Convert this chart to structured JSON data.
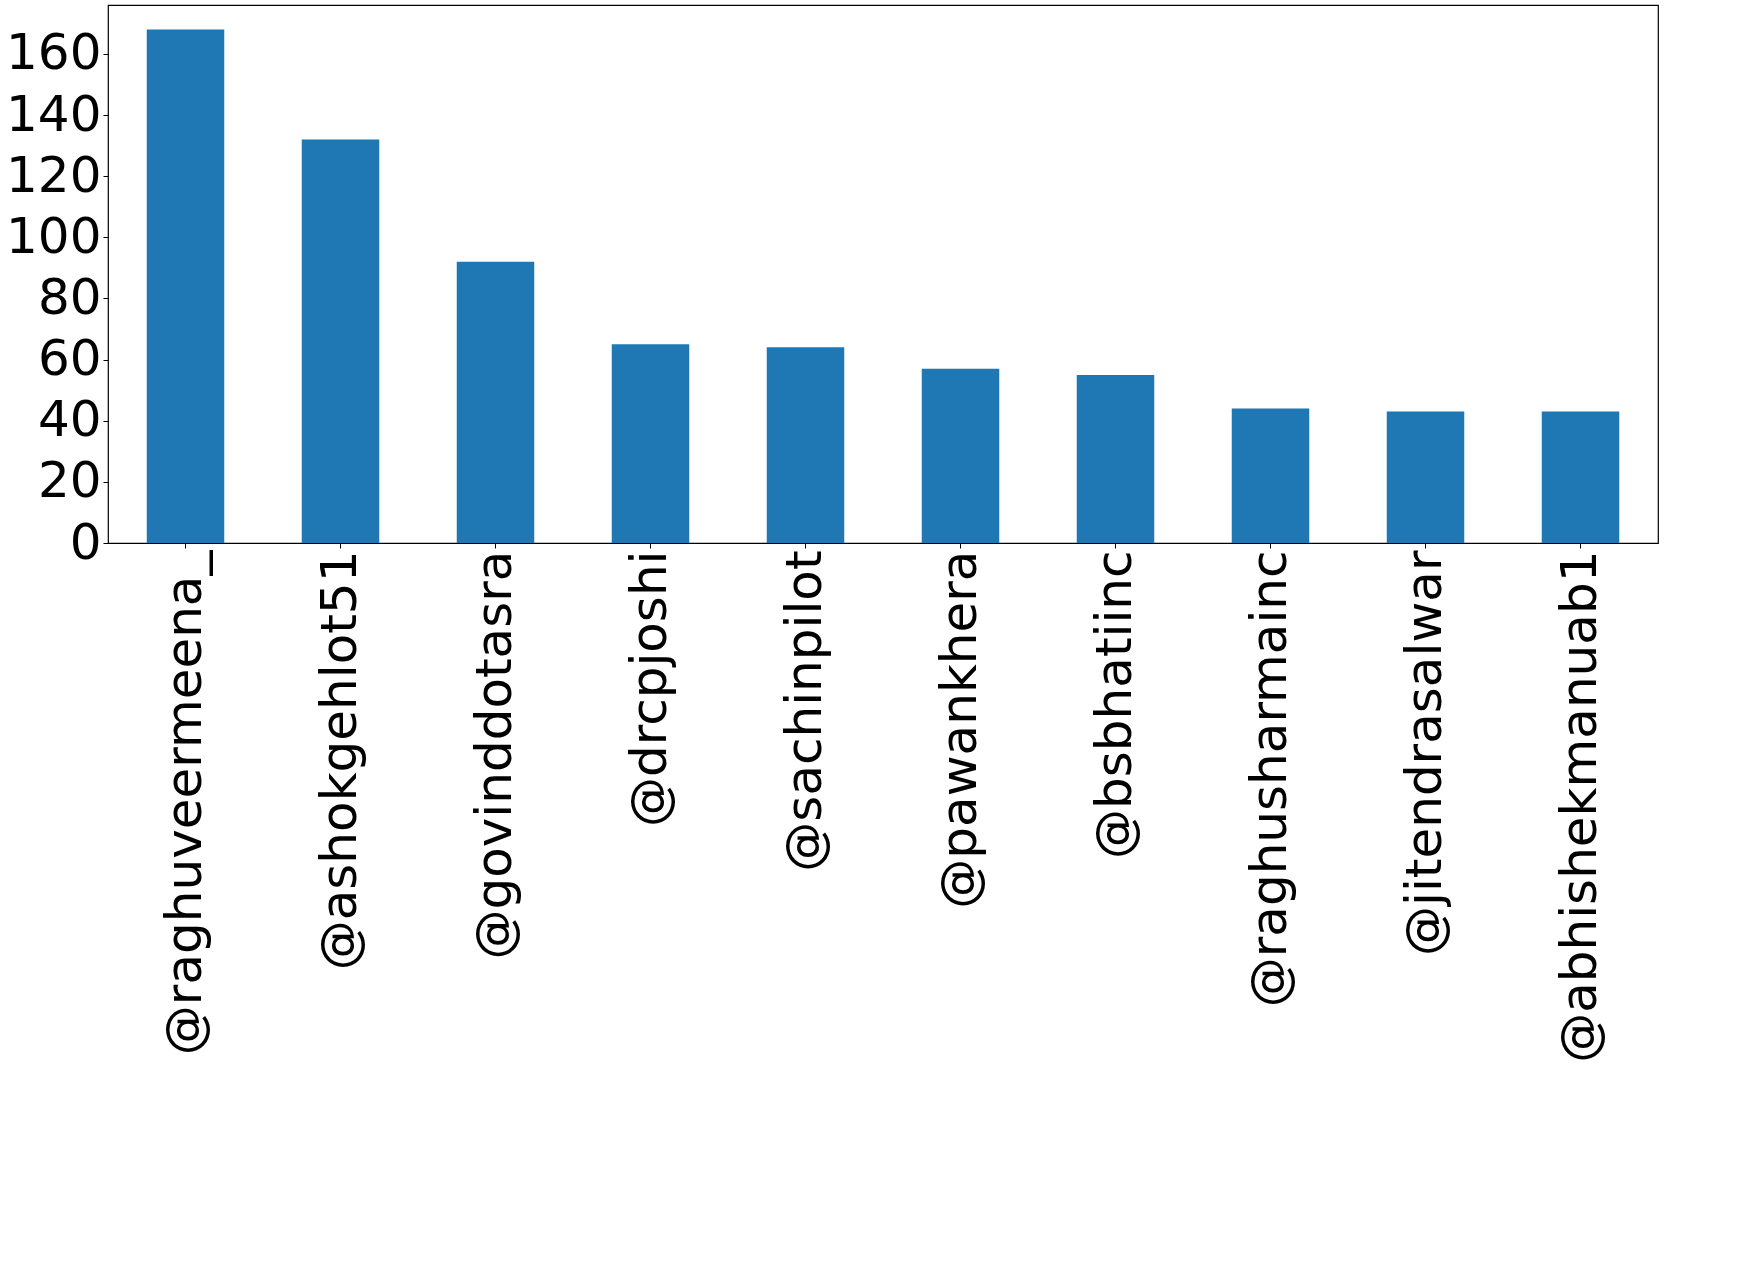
{
  "chart_data": {
    "type": "bar",
    "categories": [
      "@raghuveermeena_",
      "@ashokgehlot51",
      "@govinddotasra",
      "@drcpjoshi",
      "@sachinpilot",
      "@pawankhera",
      "@bsbhatiinc",
      "@raghusharmainc",
      "@jitendrasalwar",
      "@abhishekmanuab1"
    ],
    "values": [
      168,
      132,
      92,
      65,
      64,
      57,
      55,
      44,
      43,
      43
    ],
    "color": "#1f77b4",
    "ylim": [
      0,
      176
    ],
    "yticks": [
      0,
      20,
      40,
      60,
      80,
      100,
      120,
      140,
      160
    ],
    "grid": false
  }
}
